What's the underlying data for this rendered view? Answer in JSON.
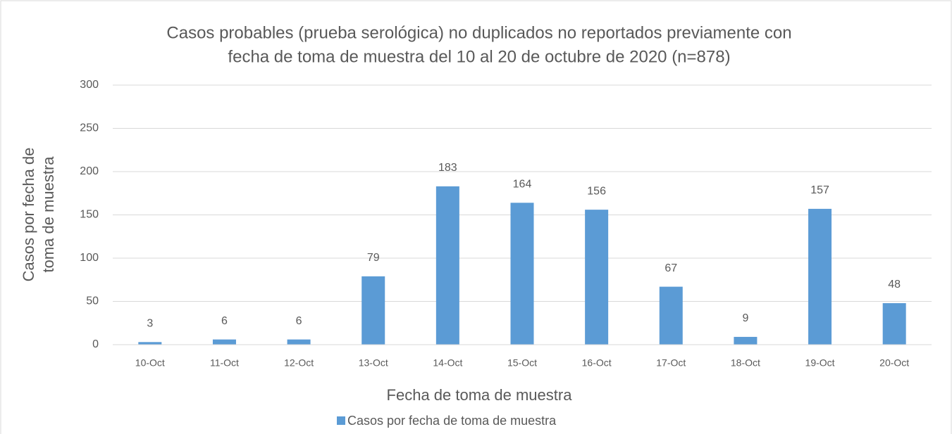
{
  "chart_data": {
    "type": "bar",
    "title": [
      "Casos probables (prueba serológica) no duplicados no reportados previamente con",
      "fecha de toma de muestra del 10 al 20 de octubre de 2020 (n=878)"
    ],
    "x_label": "Fecha de toma de muestra",
    "y_label": [
      "Casos por fecha de",
      "toma de muestra"
    ],
    "categories": [
      "10-Oct",
      "11-Oct",
      "12-Oct",
      "13-Oct",
      "14-Oct",
      "15-Oct",
      "16-Oct",
      "17-Oct",
      "18-Oct",
      "19-Oct",
      "20-Oct"
    ],
    "series": [
      {
        "name": "Casos por fecha de toma de muestra",
        "color": "#5b9bd5",
        "values": [
          3,
          6,
          6,
          79,
          183,
          164,
          156,
          67,
          9,
          157,
          48
        ]
      }
    ],
    "ylim": [
      0,
      300
    ],
    "yticks": [
      0,
      50,
      100,
      150,
      200,
      250,
      300
    ],
    "grid": true,
    "legend": "bottom"
  }
}
